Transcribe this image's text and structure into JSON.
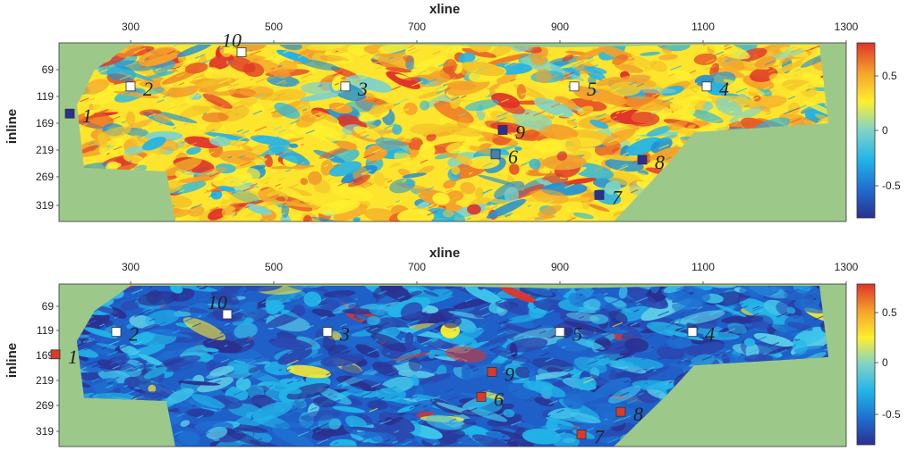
{
  "panels": [
    {
      "xlabel": "xline",
      "ylabel": "inline",
      "x_ticks": [
        "300",
        "500",
        "700",
        "900",
        "1100",
        "1300"
      ],
      "y_ticks": [
        "69",
        "119",
        "169",
        "219",
        "269",
        "319"
      ],
      "colorbar_ticks": [
        "0.5",
        "0",
        "-0.5"
      ],
      "colorbar_range": [
        -0.8,
        0.8
      ],
      "background_tone": "positive",
      "markers": [
        {
          "label": "1",
          "xline": 215,
          "inline": 150,
          "color": "#2b2f8f"
        },
        {
          "label": "2",
          "xline": 300,
          "inline": 100,
          "color": "#ffffff"
        },
        {
          "label": "3",
          "xline": 600,
          "inline": 100,
          "color": "#ffffff"
        },
        {
          "label": "4",
          "xline": 1105,
          "inline": 100,
          "color": "#ffffff"
        },
        {
          "label": "5",
          "xline": 920,
          "inline": 100,
          "color": "#ffffff"
        },
        {
          "label": "6",
          "xline": 810,
          "inline": 225,
          "color": "#4a7fb0"
        },
        {
          "label": "7",
          "xline": 955,
          "inline": 300,
          "color": "#2b2f8f"
        },
        {
          "label": "8",
          "xline": 1015,
          "inline": 235,
          "color": "#2b2f8f"
        },
        {
          "label": "9",
          "xline": 820,
          "inline": 180,
          "color": "#2b2f8f"
        },
        {
          "label": "10",
          "xline": 455,
          "inline": 37,
          "color": "#ffffff"
        }
      ]
    },
    {
      "xlabel": "xline",
      "ylabel": "inline",
      "x_ticks": [
        "300",
        "500",
        "700",
        "900",
        "1100",
        "1300"
      ],
      "y_ticks": [
        "69",
        "119",
        "169",
        "219",
        "269",
        "319"
      ],
      "colorbar_ticks": [
        "0.5",
        "0",
        "-0.5"
      ],
      "colorbar_range": [
        -0.8,
        0.8
      ],
      "background_tone": "negative",
      "markers": [
        {
          "label": "1",
          "xline": 195,
          "inline": 165,
          "color": "#d93a2b"
        },
        {
          "label": "2",
          "xline": 280,
          "inline": 120,
          "color": "#ffffff"
        },
        {
          "label": "3",
          "xline": 575,
          "inline": 120,
          "color": "#ffffff"
        },
        {
          "label": "4",
          "xline": 1085,
          "inline": 120,
          "color": "#ffffff"
        },
        {
          "label": "5",
          "xline": 900,
          "inline": 120,
          "color": "#ffffff"
        },
        {
          "label": "6",
          "xline": 790,
          "inline": 250,
          "color": "#d93a2b"
        },
        {
          "label": "7",
          "xline": 930,
          "inline": 325,
          "color": "#d93a2b"
        },
        {
          "label": "8",
          "xline": 985,
          "inline": 280,
          "color": "#d93a2b"
        },
        {
          "label": "9",
          "xline": 805,
          "inline": 200,
          "color": "#d93a2b"
        },
        {
          "label": "10",
          "xline": 435,
          "inline": 85,
          "color": "#ffffff"
        }
      ]
    }
  ],
  "colors": {
    "outside_area": "#9cc98a",
    "colormap": [
      "#2b2f8f",
      "#1f6fd1",
      "#22b4e8",
      "#7fd3c8",
      "#ffef2e",
      "#f4a12a",
      "#e0332a"
    ]
  }
}
